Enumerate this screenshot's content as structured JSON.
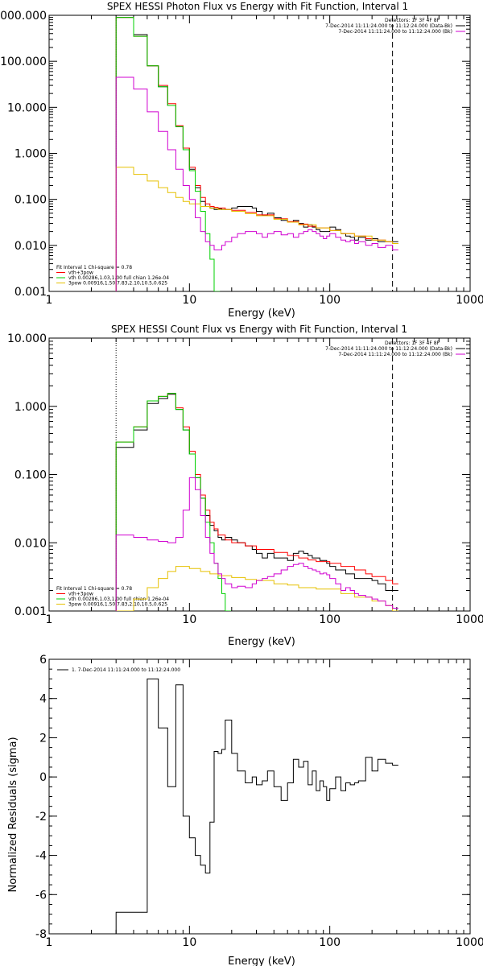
{
  "chart_data": [
    {
      "type": "line",
      "title": "SPEX HESSI Photon Flux vs Energy with Fit Function, Interval 1",
      "xlabel": "Energy (keV)",
      "ylabel": "",
      "xscale": "log",
      "yscale": "log",
      "xlim": [
        1,
        1000
      ],
      "ylim": [
        0.001,
        1000
      ],
      "xticks": [
        "1",
        "10",
        "100",
        "1000"
      ],
      "yticks": [
        "1000.000",
        "100.000",
        "10.000",
        "1.000",
        "0.100",
        "0.010",
        "0.001"
      ],
      "ytick_values": [
        1000,
        100,
        10,
        1,
        0.1,
        0.01,
        0.001
      ],
      "legend_top": [
        "Detectors: 1F 3F 4F 8F",
        "7-Dec-2014 11:11:24.000 to 11:12:24.000 (Data-Bk)",
        "7-Dec-2014 11:11:24.000 to 11:12:24.000 (Bk)"
      ],
      "legend_bottom": [
        "Fit Interval 1   Chi-square = 0.78",
        "vth+3pow",
        "vth 0.00286,1.03,1.00  full chian 1.26e-04",
        "3pow 0.00916,1.50,7.83,2.10,10.5,0.625"
      ],
      "vlines": [
        3,
        280
      ],
      "series": [
        {
          "name": "7-Dec-2014 11:11:24.000 to 11:12:24.000 (Data-Bk)",
          "color": "#000000",
          "x": [
            3,
            4,
            5,
            6,
            7,
            8,
            9,
            10,
            11,
            12,
            13,
            14,
            15,
            16,
            17,
            18,
            20,
            22,
            25,
            28,
            30,
            33,
            36,
            40,
            45,
            50,
            55,
            60,
            65,
            70,
            75,
            80,
            85,
            90,
            95,
            100,
            110,
            120,
            130,
            140,
            150,
            160,
            180,
            200,
            220,
            250,
            280
          ],
          "y": [
            900,
            380,
            80,
            28,
            11,
            3.8,
            1.3,
            0.45,
            0.18,
            0.09,
            0.07,
            0.065,
            0.06,
            0.062,
            0.06,
            0.06,
            0.065,
            0.07,
            0.07,
            0.065,
            0.055,
            0.045,
            0.05,
            0.04,
            0.035,
            0.032,
            0.035,
            0.03,
            0.025,
            0.028,
            0.025,
            0.022,
            0.02,
            0.02,
            0.02,
            0.025,
            0.022,
            0.018,
            0.016,
            0.015,
            0.013,
            0.015,
            0.013,
            0.014,
            0.012,
            0.012,
            0.012
          ]
        },
        {
          "name": "vth+3pow",
          "color": "#ff0000",
          "x": [
            3,
            4,
            5,
            6,
            7,
            8,
            9,
            10,
            11,
            12,
            13,
            14,
            15,
            16,
            18,
            20,
            25,
            30,
            40,
            50,
            60,
            70,
            80,
            100,
            120,
            150,
            180,
            200,
            250,
            280
          ],
          "y": [
            900,
            350,
            80,
            30,
            12,
            4,
            1.3,
            0.5,
            0.2,
            0.11,
            0.08,
            0.07,
            0.067,
            0.065,
            0.06,
            0.058,
            0.052,
            0.046,
            0.038,
            0.033,
            0.029,
            0.026,
            0.024,
            0.021,
            0.018,
            0.016,
            0.014,
            0.013,
            0.012,
            0.011
          ]
        },
        {
          "name": "vth 0.00286,1.03,1.00 full chian 1.26e-04",
          "color": "#00d000",
          "x": [
            3,
            4,
            5,
            6,
            7,
            8,
            9,
            10,
            11,
            12,
            13,
            14,
            15
          ],
          "y": [
            900,
            350,
            80,
            28,
            11,
            3.8,
            1.2,
            0.42,
            0.15,
            0.055,
            0.018,
            0.005,
            0.001
          ]
        },
        {
          "name": "3pow 0.00916,1.50,7.83,2.10,10.5,0.625",
          "color": "#e6c000",
          "x": [
            3,
            4,
            5,
            6,
            7,
            8,
            9,
            10,
            12,
            14,
            16,
            20,
            25,
            30,
            40,
            50,
            60,
            80,
            100,
            120,
            150,
            200,
            250,
            280
          ],
          "y": [
            0.5,
            0.35,
            0.25,
            0.18,
            0.14,
            0.11,
            0.09,
            0.08,
            0.07,
            0.064,
            0.06,
            0.055,
            0.049,
            0.044,
            0.037,
            0.032,
            0.028,
            0.024,
            0.021,
            0.018,
            0.016,
            0.013,
            0.012,
            0.011
          ]
        },
        {
          "name": "7-Dec-2014 11:11:24.000 to 11:12:24.000 (Bk)",
          "color": "#d000d0",
          "x": [
            3,
            4,
            5,
            6,
            7,
            8,
            9,
            10,
            11,
            12,
            13,
            14,
            15,
            16,
            17,
            18,
            20,
            22,
            25,
            28,
            30,
            33,
            36,
            40,
            45,
            50,
            55,
            60,
            65,
            70,
            75,
            80,
            85,
            90,
            95,
            100,
            110,
            120,
            130,
            140,
            150,
            160,
            180,
            200,
            220,
            250,
            280
          ],
          "y": [
            45,
            25,
            8,
            3,
            1.2,
            0.45,
            0.2,
            0.1,
            0.04,
            0.02,
            0.012,
            0.01,
            0.008,
            0.008,
            0.01,
            0.012,
            0.015,
            0.018,
            0.02,
            0.02,
            0.018,
            0.015,
            0.018,
            0.02,
            0.017,
            0.018,
            0.015,
            0.018,
            0.02,
            0.022,
            0.02,
            0.018,
            0.016,
            0.014,
            0.016,
            0.018,
            0.015,
            0.013,
            0.012,
            0.013,
            0.011,
            0.012,
            0.01,
            0.011,
            0.009,
            0.01,
            0.008
          ]
        }
      ]
    },
    {
      "type": "line",
      "title": "SPEX HESSI Count Flux vs Energy with Fit Function, Interval 1",
      "xlabel": "Energy (keV)",
      "ylabel": "",
      "xscale": "log",
      "yscale": "log",
      "xlim": [
        1,
        1000
      ],
      "ylim": [
        0.001,
        10
      ],
      "xticks": [
        "1",
        "10",
        "100",
        "1000"
      ],
      "yticks": [
        "10.000",
        "1.000",
        "0.100",
        "0.010",
        "0.001"
      ],
      "ytick_values": [
        10,
        1,
        0.1,
        0.01,
        0.001
      ],
      "legend_top": [
        "Detectors: 1F 3F 4F 8F",
        "7-Dec-2014 11:11:24.000 to 11:12:24.000 (Data-Bk)",
        "7-Dec-2014 11:11:24.000 to 11:12:24.000 (Bk)"
      ],
      "legend_bottom": [
        "Fit Interval 1   Chi-square = 0.78",
        "vth+3pow",
        "vth 0.00286,1.03,1.00  full chian 1.26e-04",
        "3pow 0.00916,1.50,7.83,2.10,10.5,0.625"
      ],
      "vlines": [
        3,
        280
      ],
      "series": [
        {
          "name": "7-Dec-2014 11:11:24.000 to 11:12:24.000 (Data-Bk)",
          "color": "#000000",
          "x": [
            3,
            4,
            5,
            6,
            7,
            8,
            9,
            10,
            11,
            12,
            13,
            14,
            15,
            16,
            17,
            18,
            20,
            22,
            25,
            28,
            30,
            33,
            36,
            40,
            45,
            50,
            55,
            60,
            65,
            70,
            75,
            80,
            85,
            90,
            95,
            100,
            110,
            120,
            130,
            140,
            150,
            160,
            180,
            200,
            220,
            250,
            280
          ],
          "y": [
            0.25,
            0.45,
            1.1,
            1.3,
            1.5,
            0.9,
            0.45,
            0.2,
            0.09,
            0.045,
            0.025,
            0.018,
            0.015,
            0.012,
            0.011,
            0.012,
            0.011,
            0.01,
            0.009,
            0.008,
            0.007,
            0.006,
            0.007,
            0.006,
            0.006,
            0.0055,
            0.007,
            0.0075,
            0.007,
            0.0065,
            0.006,
            0.006,
            0.0055,
            0.0055,
            0.005,
            0.0045,
            0.004,
            0.004,
            0.0035,
            0.0035,
            0.003,
            0.003,
            0.003,
            0.0028,
            0.0025,
            0.002,
            0.002
          ]
        },
        {
          "name": "vth+3pow",
          "color": "#ff0000",
          "x": [
            3,
            4,
            5,
            6,
            7,
            8,
            9,
            10,
            11,
            12,
            13,
            14,
            15,
            16,
            18,
            20,
            25,
            30,
            40,
            50,
            60,
            70,
            80,
            100,
            120,
            150,
            180,
            200,
            250,
            280
          ],
          "y": [
            0.3,
            0.5,
            1.2,
            1.4,
            1.55,
            0.95,
            0.5,
            0.22,
            0.1,
            0.05,
            0.03,
            0.02,
            0.016,
            0.013,
            0.011,
            0.01,
            0.009,
            0.008,
            0.0072,
            0.0065,
            0.006,
            0.0056,
            0.0053,
            0.005,
            0.0045,
            0.004,
            0.0035,
            0.0032,
            0.0028,
            0.0025
          ]
        },
        {
          "name": "vth 0.00286,1.03,1.00 full chian 1.26e-04",
          "color": "#00d000",
          "x": [
            3,
            4,
            5,
            6,
            7,
            8,
            9,
            10,
            11,
            12,
            13,
            14,
            15,
            16,
            17,
            18
          ],
          "y": [
            0.3,
            0.5,
            1.2,
            1.4,
            1.55,
            0.9,
            0.45,
            0.2,
            0.09,
            0.045,
            0.02,
            0.01,
            0.005,
            0.003,
            0.0018,
            0.001
          ]
        },
        {
          "name": "3pow 0.00916,1.50,7.83,2.10,10.5,0.625",
          "color": "#e6c000",
          "x": [
            3,
            4,
            5,
            6,
            7,
            8,
            9,
            10,
            12,
            14,
            16,
            20,
            25,
            30,
            40,
            50,
            60,
            80,
            100,
            120,
            150,
            200,
            250,
            280
          ],
          "y": [
            0.001,
            0.0015,
            0.0022,
            0.003,
            0.0038,
            0.0045,
            0.0045,
            0.0042,
            0.0038,
            0.0035,
            0.0033,
            0.0031,
            0.0029,
            0.0028,
            0.0025,
            0.0024,
            0.0022,
            0.0021,
            0.0021,
            0.0018,
            0.0016,
            0.0014,
            0.0012,
            0.001
          ]
        },
        {
          "name": "7-Dec-2014 11:11:24.000 to 11:12:24.000 (Bk)",
          "color": "#d000d0",
          "x": [
            3,
            4,
            5,
            6,
            7,
            8,
            9,
            10,
            11,
            12,
            13,
            14,
            15,
            16,
            17,
            18,
            20,
            22,
            25,
            28,
            30,
            33,
            36,
            40,
            45,
            50,
            55,
            60,
            65,
            70,
            75,
            80,
            85,
            90,
            95,
            100,
            110,
            120,
            130,
            140,
            150,
            160,
            180,
            200,
            220,
            250,
            280
          ],
          "y": [
            0.013,
            0.012,
            0.011,
            0.0105,
            0.01,
            0.012,
            0.03,
            0.09,
            0.06,
            0.025,
            0.012,
            0.007,
            0.005,
            0.0035,
            0.003,
            0.0025,
            0.0022,
            0.0023,
            0.0022,
            0.0025,
            0.0028,
            0.003,
            0.0032,
            0.0035,
            0.004,
            0.0045,
            0.0048,
            0.005,
            0.0045,
            0.0042,
            0.004,
            0.0038,
            0.0035,
            0.0036,
            0.0034,
            0.003,
            0.0025,
            0.002,
            0.0022,
            0.002,
            0.0018,
            0.0017,
            0.0016,
            0.0015,
            0.0014,
            0.0012,
            0.0011
          ]
        }
      ]
    },
    {
      "type": "line",
      "title": "",
      "xlabel": "Energy (keV)",
      "ylabel": "Normalized Residuals (sigma)",
      "xscale": "log",
      "yscale": "linear",
      "xlim": [
        1,
        1000
      ],
      "ylim": [
        -8,
        6
      ],
      "xticks": [
        "1",
        "10",
        "100",
        "1000"
      ],
      "yticks": [
        "6",
        "4",
        "2",
        "0",
        "-2",
        "-4",
        "-6",
        "-8"
      ],
      "ytick_values": [
        6,
        4,
        2,
        0,
        -2,
        -4,
        -6,
        -8
      ],
      "legend": [
        "1.  7-Dec-2014 11:11:24.000 to 11:12:24.000"
      ],
      "series": [
        {
          "name": "1.  7-Dec-2014 11:11:24.000 to 11:12:24.000",
          "color": "#000000",
          "x": [
            3,
            4,
            5,
            6,
            7,
            8,
            9,
            10,
            11,
            12,
            13,
            14,
            15,
            16,
            17,
            18,
            20,
            22,
            25,
            28,
            30,
            33,
            36,
            40,
            45,
            50,
            55,
            60,
            65,
            70,
            75,
            80,
            85,
            90,
            95,
            100,
            110,
            120,
            130,
            140,
            150,
            160,
            180,
            200,
            220,
            250,
            280
          ],
          "y": [
            -6.9,
            -6.9,
            5.0,
            2.5,
            -0.5,
            4.7,
            -2.0,
            -3.1,
            -4.0,
            -4.5,
            -4.9,
            -2.3,
            1.3,
            1.2,
            1.4,
            2.9,
            1.2,
            0.3,
            -0.3,
            0.0,
            -0.4,
            -0.2,
            0.3,
            -0.5,
            -1.2,
            -0.3,
            0.9,
            0.5,
            0.8,
            -0.4,
            0.3,
            -0.7,
            -0.2,
            -0.5,
            -1.2,
            -0.6,
            0.0,
            -0.7,
            -0.3,
            -0.4,
            -0.3,
            -0.2,
            1.0,
            0.3,
            0.9,
            0.7,
            0.6
          ]
        }
      ]
    }
  ]
}
